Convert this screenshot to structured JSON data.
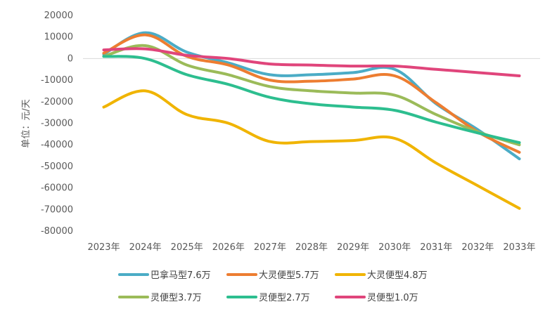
{
  "chart_data": {
    "type": "line",
    "title": "",
    "xlabel": "",
    "ylabel": "单位：元/天",
    "ylim": [
      -80000,
      20000
    ],
    "yticks": [
      20000,
      10000,
      0,
      -10000,
      -20000,
      -30000,
      -40000,
      -50000,
      -60000,
      -70000,
      -80000
    ],
    "tick_labels_y": [
      "20000",
      "10000",
      "0",
      "-10000",
      "-20000",
      "-30000",
      "-40000",
      "-50000",
      "-60000",
      "-70000",
      "-80000"
    ],
    "categories": [
      "2023年",
      "2024年",
      "2025年",
      "2026年",
      "2027年",
      "2028年",
      "2029年",
      "2030年",
      "2031年",
      "2032年",
      "2033年"
    ],
    "grid": false,
    "legend_position": "bottom",
    "series": [
      {
        "name": "巴拿马型7.6万",
        "color": "#4bacc6",
        "values": [
          2000,
          12000,
          3000,
          -2000,
          -7500,
          -7500,
          -6500,
          -5000,
          -21000,
          -33000,
          -46500
        ]
      },
      {
        "name": "大灵便型5.7万",
        "color": "#ed7d31",
        "values": [
          2500,
          11000,
          1000,
          -3000,
          -10000,
          -10500,
          -9500,
          -8000,
          -20500,
          -34000,
          -43500
        ]
      },
      {
        "name": "大灵便型4.8万",
        "color": "#f0b400",
        "values": [
          -22500,
          -15000,
          -26000,
          -30000,
          -38500,
          -38500,
          -38000,
          -37000,
          -48500,
          -59000,
          -69500
        ]
      },
      {
        "name": "灵便型3.7万",
        "color": "#9bbb59",
        "values": [
          1000,
          6000,
          -3000,
          -7500,
          -13000,
          -15000,
          -16000,
          -17000,
          -26000,
          -34000,
          -40000
        ]
      },
      {
        "name": "灵便型2.7万",
        "color": "#2dbe8f",
        "values": [
          1000,
          0,
          -7500,
          -12000,
          -18000,
          -21000,
          -22500,
          -24000,
          -29500,
          -34500,
          -39000
        ]
      },
      {
        "name": "灵便型1.0万",
        "color": "#e0457b",
        "values": [
          4000,
          4500,
          1500,
          0,
          -2500,
          -3000,
          -3500,
          -3500,
          -5000,
          -6500,
          -8000
        ]
      }
    ]
  }
}
